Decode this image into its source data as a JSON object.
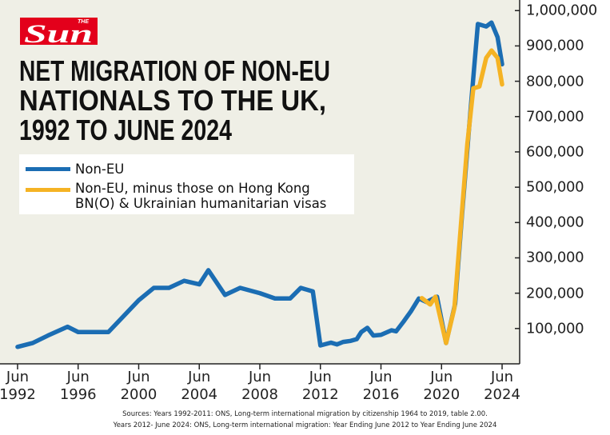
{
  "chart_data": {
    "type": "line",
    "brand": "Sun",
    "brand_prefix": "THE",
    "title": [
      "NET MIGRATION OF NON-EU",
      "NATIONALS TO THE UK,",
      "1992 TO JUNE 2024"
    ],
    "series": [
      {
        "name": "Non-EU",
        "color": "#1b6db3",
        "x": [
          1992.5,
          1993.5,
          1994.5,
          1995.8,
          1996.5,
          1998.5,
          2000.5,
          2001.5,
          2002.5,
          2003.5,
          2004.5,
          2005.1,
          2006.2,
          2007.2,
          2008.5,
          2009.5,
          2010.5,
          2011.2,
          2012.0,
          2012.5,
          2013.2,
          2013.6,
          2014.0,
          2014.5,
          2014.9,
          2015.2,
          2015.6,
          2016.0,
          2016.5,
          2017.2,
          2017.5,
          2018.0,
          2018.5,
          2019.0,
          2019.5,
          2020.2,
          2020.8,
          2021.4,
          2021.85,
          2022.4,
          2022.9,
          2023.45,
          2023.8,
          2024.2,
          2024.5
        ],
        "values": [
          48000,
          59000,
          80000,
          105000,
          90000,
          90000,
          180000,
          215000,
          215000,
          235000,
          225000,
          265000,
          195000,
          215000,
          200000,
          185000,
          185000,
          215000,
          205000,
          52000,
          60000,
          55000,
          62000,
          65000,
          70000,
          90000,
          102000,
          80000,
          82000,
          95000,
          92000,
          120000,
          150000,
          185000,
          175000,
          190000,
          59000,
          170000,
          420000,
          710000,
          962000,
          955000,
          966000,
          925000,
          848000
        ]
      },
      {
        "name": "Non-EU, minus those on Hong Kong BN(O) & Ukrainian humanitarian visas",
        "color": "#f5b324",
        "x": [
          2019.2,
          2019.75,
          2020.1,
          2020.8,
          2021.35,
          2021.7,
          2022.2,
          2022.6,
          2023.0,
          2023.45,
          2023.8,
          2024.2,
          2024.5
        ],
        "values": [
          186000,
          168000,
          190000,
          59000,
          158000,
          349000,
          621000,
          780000,
          785000,
          866000,
          887000,
          866000,
          791000
        ]
      }
    ],
    "xlim": [
      1991.34,
      2025.66
    ],
    "xticks": [
      {
        "value": 1992.5,
        "label": "Jun 1992"
      },
      {
        "value": 1996.5,
        "label": "Jun 1996"
      },
      {
        "value": 2000.5,
        "label": "Jun 2000"
      },
      {
        "value": 2004.5,
        "label": "Jun 2004"
      },
      {
        "value": 2008.5,
        "label": "Jun 2008"
      },
      {
        "value": 2012.5,
        "label": "Jun 2012"
      },
      {
        "value": 2016.5,
        "label": "Jun 2016"
      },
      {
        "value": 2020.5,
        "label": "Jun 2020"
      },
      {
        "value": 2024.5,
        "label": "Jun 2024"
      }
    ],
    "ylim": [
      0,
      1030000
    ],
    "yticks": [
      {
        "value": 100000,
        "label": "100,000"
      },
      {
        "value": 200000,
        "label": "200,000"
      },
      {
        "value": 300000,
        "label": "300,000"
      },
      {
        "value": 400000,
        "label": "400,000"
      },
      {
        "value": 500000,
        "label": "500,000"
      },
      {
        "value": 600000,
        "label": "600,000"
      },
      {
        "value": 700000,
        "label": "700,000"
      },
      {
        "value": 800000,
        "label": "800,000"
      },
      {
        "value": 900000,
        "label": "900,000"
      },
      {
        "value": 1000000,
        "label": "1,000,000"
      }
    ],
    "sources": [
      "Sources: Years 1992-2011: ONS, Long-term international migration by citizenship 1964 to 2019, table 2.00.",
      "Years 2012- June 2024: ONS, Long-term international migration: Year Ending June 2012 to Year Ending June 2024"
    ]
  }
}
